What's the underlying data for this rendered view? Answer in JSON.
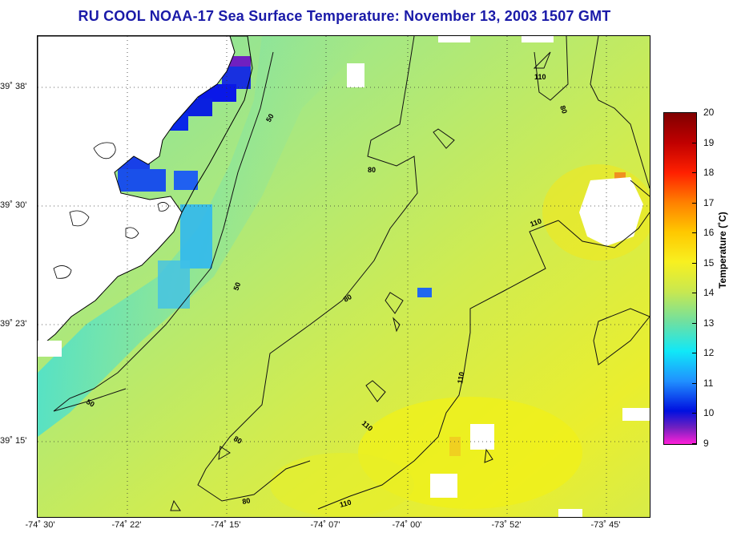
{
  "title": "RU COOL  NOAA-17  Sea Surface Temperature:  November 13, 2003 1507 GMT",
  "latitude_labels": [
    "39˚ 38'",
    "39˚ 30'",
    "39˚ 23'",
    "39˚ 15'"
  ],
  "longitude_labels": [
    "-74˚ 30'",
    "-74˚ 22'",
    "-74˚ 15'",
    "-74˚ 07'",
    "-74˚ 00'",
    "-73˚ 52'",
    "-73˚ 45'"
  ],
  "colorbar": {
    "title": "Temperature (˚C)",
    "ticks": [
      "20",
      "19",
      "18",
      "17",
      "16",
      "15",
      "14",
      "13",
      "12",
      "11",
      "10",
      "9"
    ],
    "min": 9,
    "max": 20
  },
  "contours": [
    {
      "label": "50",
      "depth": 50
    },
    {
      "label": "50",
      "depth": 50
    },
    {
      "label": "50",
      "depth": 50
    },
    {
      "label": "80",
      "depth": 80
    },
    {
      "label": "80",
      "depth": 80
    },
    {
      "label": "80",
      "depth": 80
    },
    {
      "label": "80",
      "depth": 80
    },
    {
      "label": "110",
      "depth": 110
    },
    {
      "label": "110",
      "depth": 110
    },
    {
      "label": "110",
      "depth": 110
    },
    {
      "label": "110",
      "depth": 110
    },
    {
      "label": "110",
      "depth": 110
    },
    {
      "label": "80",
      "depth": 80
    }
  ],
  "colors": {
    "title": "#1a1aa8",
    "land": "#ffffff",
    "water_base": "#bfe86c"
  }
}
